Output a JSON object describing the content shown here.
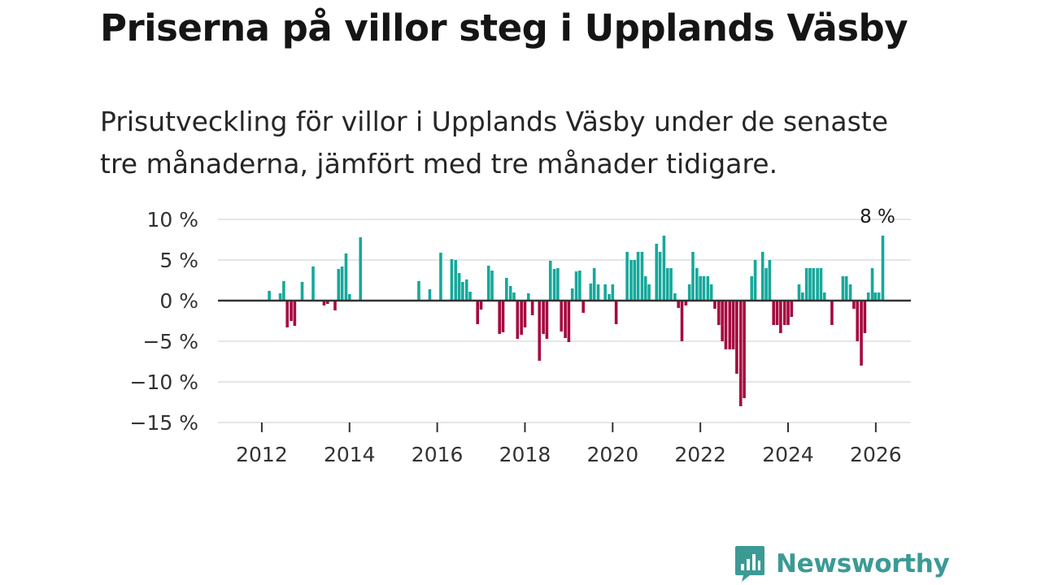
{
  "title": "Priserna på villor steg i Upplands Väsby",
  "subtitle_line1": "Prisutveckling för villor i Upplands Väsby under de senaste",
  "subtitle_line2": "tre månaderna, jämfört med tre månader tidigare.",
  "brand": {
    "name": "Newsworthy",
    "color": "#3c9a95",
    "icon": "newsworthy-logo-icon"
  },
  "colors": {
    "positive": "#16a89b",
    "negative": "#a6093f",
    "grid": "#dddddd",
    "zero": "#333333"
  },
  "chart_data": {
    "type": "bar",
    "title": "Priserna på villor steg i Upplands Väsby",
    "ylabel": "",
    "xlabel": "",
    "ylim": [
      -15,
      10
    ],
    "yticks": [
      10,
      5,
      0,
      -5,
      -10,
      -15
    ],
    "ytick_labels": [
      "10 %",
      "5 %",
      "0 %",
      "−5 %",
      "−10 %",
      "−15 %"
    ],
    "xlim": [
      2011.0,
      2026.8
    ],
    "xticks": [
      2012,
      2014,
      2016,
      2018,
      2020,
      2022,
      2024,
      2026
    ],
    "xtick_labels": [
      "2012",
      "2014",
      "2016",
      "2018",
      "2020",
      "2022",
      "2024",
      "2026"
    ],
    "grid": true,
    "annotation": {
      "text": "8 %",
      "x": 2026.04,
      "y": 8
    },
    "series": [
      {
        "name": "Prisutveckling",
        "points": [
          {
            "x": 2012.17,
            "y": 1.2
          },
          {
            "x": 2012.42,
            "y": 0.9
          },
          {
            "x": 2012.5,
            "y": 2.4
          },
          {
            "x": 2012.58,
            "y": -3.3
          },
          {
            "x": 2012.67,
            "y": -2.5
          },
          {
            "x": 2012.75,
            "y": -3.1
          },
          {
            "x": 2012.92,
            "y": 2.3
          },
          {
            "x": 2013.17,
            "y": 4.2
          },
          {
            "x": 2013.42,
            "y": -0.6
          },
          {
            "x": 2013.5,
            "y": -0.4
          },
          {
            "x": 2013.67,
            "y": -1.2
          },
          {
            "x": 2013.75,
            "y": 3.9
          },
          {
            "x": 2013.83,
            "y": 4.2
          },
          {
            "x": 2013.92,
            "y": 5.8
          },
          {
            "x": 2014.0,
            "y": 0.8
          },
          {
            "x": 2014.25,
            "y": 7.8
          },
          {
            "x": 2015.58,
            "y": 2.4
          },
          {
            "x": 2015.83,
            "y": 1.4
          },
          {
            "x": 2016.08,
            "y": 5.9
          },
          {
            "x": 2016.33,
            "y": 5.1
          },
          {
            "x": 2016.42,
            "y": 5.0
          },
          {
            "x": 2016.5,
            "y": 3.4
          },
          {
            "x": 2016.58,
            "y": 2.3
          },
          {
            "x": 2016.67,
            "y": 2.6
          },
          {
            "x": 2016.75,
            "y": 1.1
          },
          {
            "x": 2016.92,
            "y": -2.9
          },
          {
            "x": 2017.0,
            "y": -1.1
          },
          {
            "x": 2017.17,
            "y": 4.3
          },
          {
            "x": 2017.25,
            "y": 3.7
          },
          {
            "x": 2017.42,
            "y": -4.1
          },
          {
            "x": 2017.5,
            "y": -3.9
          },
          {
            "x": 2017.58,
            "y": 2.8
          },
          {
            "x": 2017.67,
            "y": 1.8
          },
          {
            "x": 2017.75,
            "y": 1.0
          },
          {
            "x": 2017.83,
            "y": -4.7
          },
          {
            "x": 2017.92,
            "y": -4.2
          },
          {
            "x": 2018.0,
            "y": -3.3
          },
          {
            "x": 2018.08,
            "y": 0.9
          },
          {
            "x": 2018.17,
            "y": -1.8
          },
          {
            "x": 2018.33,
            "y": -7.4
          },
          {
            "x": 2018.42,
            "y": -4.1
          },
          {
            "x": 2018.5,
            "y": -4.7
          },
          {
            "x": 2018.58,
            "y": 4.9
          },
          {
            "x": 2018.67,
            "y": 3.9
          },
          {
            "x": 2018.75,
            "y": 4.0
          },
          {
            "x": 2018.83,
            "y": -3.8
          },
          {
            "x": 2018.92,
            "y": -4.6
          },
          {
            "x": 2019.0,
            "y": -5.1
          },
          {
            "x": 2019.08,
            "y": 1.5
          },
          {
            "x": 2019.17,
            "y": 3.6
          },
          {
            "x": 2019.25,
            "y": 3.7
          },
          {
            "x": 2019.33,
            "y": -1.5
          },
          {
            "x": 2019.5,
            "y": 2.1
          },
          {
            "x": 2019.58,
            "y": 4.0
          },
          {
            "x": 2019.67,
            "y": 2.0
          },
          {
            "x": 2019.83,
            "y": 2.0
          },
          {
            "x": 2019.92,
            "y": 0.8
          },
          {
            "x": 2020.0,
            "y": 2.0
          },
          {
            "x": 2020.08,
            "y": -2.9
          },
          {
            "x": 2020.33,
            "y": 6.0
          },
          {
            "x": 2020.42,
            "y": 5.0
          },
          {
            "x": 2020.5,
            "y": 5.0
          },
          {
            "x": 2020.58,
            "y": 6.0
          },
          {
            "x": 2020.67,
            "y": 6.0
          },
          {
            "x": 2020.75,
            "y": 3.0
          },
          {
            "x": 2020.83,
            "y": 2.0
          },
          {
            "x": 2021.0,
            "y": 7.0
          },
          {
            "x": 2021.08,
            "y": 6.0
          },
          {
            "x": 2021.17,
            "y": 8.0
          },
          {
            "x": 2021.25,
            "y": 4.0
          },
          {
            "x": 2021.33,
            "y": 4.0
          },
          {
            "x": 2021.42,
            "y": 0.9
          },
          {
            "x": 2021.5,
            "y": -0.9
          },
          {
            "x": 2021.58,
            "y": -5.0
          },
          {
            "x": 2021.67,
            "y": -0.6
          },
          {
            "x": 2021.75,
            "y": 2.0
          },
          {
            "x": 2021.83,
            "y": 6.0
          },
          {
            "x": 2021.92,
            "y": 4.0
          },
          {
            "x": 2022.0,
            "y": 3.0
          },
          {
            "x": 2022.08,
            "y": 3.0
          },
          {
            "x": 2022.17,
            "y": 3.0
          },
          {
            "x": 2022.25,
            "y": 2.0
          },
          {
            "x": 2022.33,
            "y": -1.0
          },
          {
            "x": 2022.42,
            "y": -3.0
          },
          {
            "x": 2022.5,
            "y": -5.0
          },
          {
            "x": 2022.58,
            "y": -6.0
          },
          {
            "x": 2022.67,
            "y": -6.0
          },
          {
            "x": 2022.75,
            "y": -6.0
          },
          {
            "x": 2022.83,
            "y": -9.0
          },
          {
            "x": 2022.92,
            "y": -13.0
          },
          {
            "x": 2023.0,
            "y": -12.0
          },
          {
            "x": 2023.17,
            "y": 3.0
          },
          {
            "x": 2023.25,
            "y": 5.0
          },
          {
            "x": 2023.42,
            "y": 6.0
          },
          {
            "x": 2023.5,
            "y": 4.0
          },
          {
            "x": 2023.58,
            "y": 5.0
          },
          {
            "x": 2023.67,
            "y": -3.0
          },
          {
            "x": 2023.75,
            "y": -3.0
          },
          {
            "x": 2023.83,
            "y": -4.0
          },
          {
            "x": 2023.92,
            "y": -3.0
          },
          {
            "x": 2024.0,
            "y": -3.0
          },
          {
            "x": 2024.08,
            "y": -2.0
          },
          {
            "x": 2024.25,
            "y": 2.0
          },
          {
            "x": 2024.33,
            "y": 1.0
          },
          {
            "x": 2024.42,
            "y": 4.0
          },
          {
            "x": 2024.5,
            "y": 4.0
          },
          {
            "x": 2024.58,
            "y": 4.0
          },
          {
            "x": 2024.67,
            "y": 4.0
          },
          {
            "x": 2024.75,
            "y": 4.0
          },
          {
            "x": 2024.83,
            "y": 1.0
          },
          {
            "x": 2025.0,
            "y": -3.0
          },
          {
            "x": 2025.25,
            "y": 3.0
          },
          {
            "x": 2025.33,
            "y": 3.0
          },
          {
            "x": 2025.42,
            "y": 2.0
          },
          {
            "x": 2025.5,
            "y": -1.0
          },
          {
            "x": 2025.58,
            "y": -5.0
          },
          {
            "x": 2025.67,
            "y": -8.0
          },
          {
            "x": 2025.75,
            "y": -4.0
          },
          {
            "x": 2025.83,
            "y": 1.0
          },
          {
            "x": 2025.92,
            "y": 4.0
          },
          {
            "x": 2025.99,
            "y": 1.0
          },
          {
            "x": 2026.07,
            "y": 1.0
          },
          {
            "x": 2026.16,
            "y": 8.0
          }
        ]
      }
    ]
  }
}
